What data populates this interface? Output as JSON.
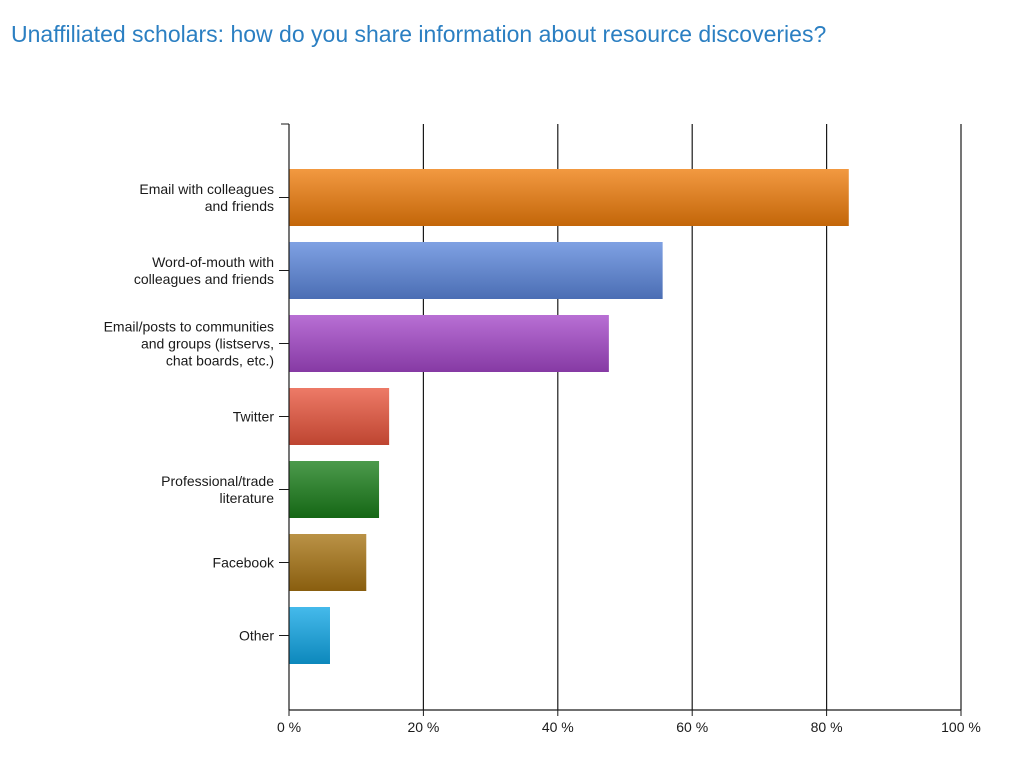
{
  "title": "Unaffiliated scholars: how do you share information about resource discoveries?",
  "chart_data": {
    "type": "bar",
    "orientation": "horizontal",
    "categories": [
      [
        "Email with colleagues",
        "and friends"
      ],
      [
        "Word-of-mouth with",
        "colleagues and friends"
      ],
      [
        "Email/posts to communities",
        "and groups (listservs,",
        "chat boards, etc.)"
      ],
      [
        "Twitter"
      ],
      [
        "Professional/trade",
        "literature"
      ],
      [
        "Facebook"
      ],
      [
        "Other"
      ]
    ],
    "values": [
      83.3,
      55.6,
      47.6,
      14.9,
      13.4,
      11.5,
      6.1
    ],
    "colors": [
      "#ee7c0b",
      "#5b86db",
      "#a447c8",
      "#e8543c",
      "#1a7d1a",
      "#a77312",
      "#10a6e5"
    ],
    "xlim": [
      0,
      100
    ],
    "xticks": [
      0,
      20,
      40,
      60,
      80,
      100
    ],
    "xtick_labels": [
      "0 %",
      "20 %",
      "40 %",
      "60 %",
      "80 %",
      "100 %"
    ],
    "grid": true,
    "xlabel": "",
    "ylabel": ""
  }
}
